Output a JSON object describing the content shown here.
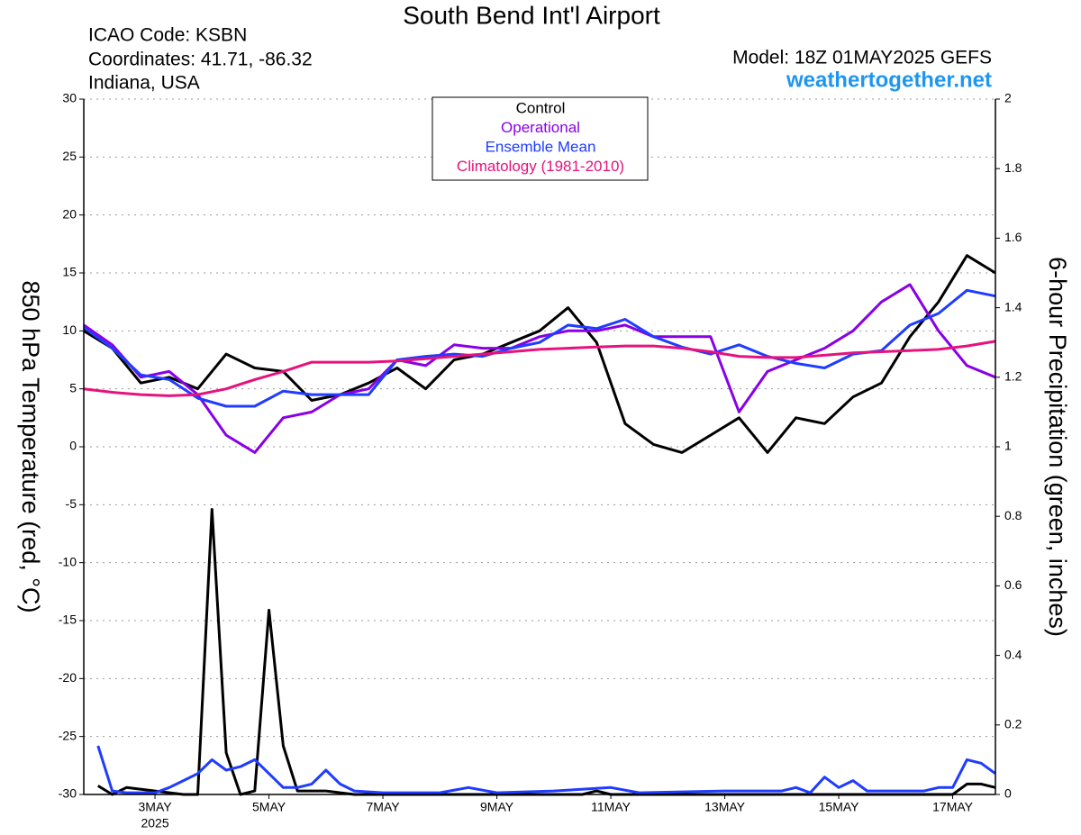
{
  "chart_data": {
    "type": "line",
    "title": "South Bend Int'l Airport",
    "info_lines": [
      "ICAO Code: KSBN",
      "Coordinates: 41.71, -86.32",
      "Indiana, USA"
    ],
    "model": "Model: 18Z 01MAY2025 GEFS",
    "website": "weathertogether.net",
    "ylabel": "850 hPa Temperature (red, °C)",
    "y2label": "6-hour Precipitation (green, inches)",
    "x_year_label": "2025",
    "xlim": [
      1.75,
      17.75
    ],
    "xticks": [
      {
        "value": 3,
        "label": "3MAY"
      },
      {
        "value": 5,
        "label": "5MAY"
      },
      {
        "value": 7,
        "label": "7MAY"
      },
      {
        "value": 9,
        "label": "9MAY"
      },
      {
        "value": 11,
        "label": "11MAY"
      },
      {
        "value": 13,
        "label": "13MAY"
      },
      {
        "value": 15,
        "label": "15MAY"
      },
      {
        "value": 17,
        "label": "17MAY"
      }
    ],
    "ylim": [
      -30,
      30
    ],
    "yticks": [
      -30,
      -25,
      -20,
      -15,
      -10,
      -5,
      0,
      5,
      10,
      15,
      20,
      25,
      30
    ],
    "y2lim": [
      0,
      2
    ],
    "y2ticks": [
      0,
      0.2,
      0.4,
      0.6,
      0.8,
      1,
      1.2,
      1.4,
      1.6,
      1.8,
      2
    ],
    "grid": true,
    "x": [
      1.75,
      2.25,
      2.75,
      3.25,
      3.75,
      4.25,
      4.75,
      5.25,
      5.75,
      6.25,
      6.75,
      7.25,
      7.75,
      8.25,
      8.75,
      9.25,
      9.75,
      10.25,
      10.75,
      11.25,
      11.75,
      12.25,
      12.75,
      13.25,
      13.75,
      14.25,
      14.75,
      15.25,
      15.75,
      16.25,
      16.75,
      17.25,
      17.75
    ],
    "series": [
      {
        "name": "Control",
        "color": "#000000",
        "values": [
          10,
          8.5,
          5.5,
          6,
          5,
          8,
          6.8,
          6.5,
          4,
          4.5,
          5.5,
          6.8,
          5,
          7.5,
          8,
          9,
          10,
          12,
          9,
          2,
          0.2,
          -0.5,
          1,
          2.5,
          -0.5,
          2.5,
          2,
          4.3,
          5.5,
          9.5,
          12.5,
          16.5,
          15
        ]
      },
      {
        "name": "Operational",
        "color": "#8a00e6",
        "values": [
          10.5,
          8.8,
          6,
          6.5,
          4.5,
          1,
          -0.5,
          2.5,
          3,
          4.5,
          5,
          7.5,
          7,
          8.8,
          8.5,
          8.5,
          9.5,
          10,
          10,
          10.5,
          9.5,
          9.5,
          9.5,
          3,
          6.5,
          7.5,
          8.5,
          10,
          12.5,
          14,
          10,
          7,
          6
        ]
      },
      {
        "name": "Ensemble Mean",
        "color": "#1f3cff",
        "values": [
          10.3,
          8.5,
          6.2,
          5.8,
          4.2,
          3.5,
          3.5,
          4.8,
          4.5,
          4.5,
          4.5,
          7.5,
          7.8,
          8,
          7.8,
          8.5,
          9,
          10.5,
          10.2,
          11,
          9.5,
          8.6,
          8,
          8.8,
          7.8,
          7.2,
          6.8,
          8,
          8.3,
          10.5,
          11.5,
          13.5,
          13
        ]
      },
      {
        "name": "Climatology (1981-2010)",
        "color": "#e6127d",
        "values": [
          5,
          4.7,
          4.5,
          4.4,
          4.5,
          5,
          5.8,
          6.5,
          7.3,
          7.3,
          7.3,
          7.4,
          7.6,
          7.8,
          8,
          8.2,
          8.4,
          8.5,
          8.6,
          8.7,
          8.7,
          8.5,
          8.2,
          7.8,
          7.7,
          7.7,
          7.9,
          8.1,
          8.2,
          8.3,
          8.4,
          8.7,
          9.1
        ]
      },
      {
        "axis": "y2",
        "color": "#000000",
        "x": [
          2,
          2.25,
          2.5,
          3.5,
          3.75,
          4,
          4.25,
          4.5,
          4.75,
          5,
          5.25,
          5.5,
          6,
          6.5,
          7,
          10.5,
          10.75,
          11,
          17,
          17.25,
          17.5,
          17.75
        ],
        "values": [
          0.025,
          0,
          0.02,
          0,
          0,
          0.82,
          0.12,
          0,
          0.01,
          0.53,
          0.14,
          0.01,
          0.01,
          0,
          0,
          0,
          0.01,
          0,
          0,
          0.03,
          0.03,
          0.02
        ]
      },
      {
        "axis": "y2",
        "color": "#1f3cff",
        "x": [
          2,
          2.25,
          2.5,
          3,
          3.25,
          3.5,
          3.75,
          4,
          4.25,
          4.5,
          4.75,
          5,
          5.25,
          5.5,
          5.75,
          6,
          6.25,
          6.5,
          7,
          8,
          8.5,
          9,
          10,
          11,
          11.5,
          13,
          14,
          14.25,
          14.5,
          14.75,
          15,
          15.25,
          15.5,
          16.5,
          16.75,
          17,
          17.25,
          17.5,
          17.75
        ],
        "values": [
          0.14,
          0.01,
          0.005,
          0.005,
          0.02,
          0.04,
          0.06,
          0.1,
          0.07,
          0.08,
          0.1,
          0.06,
          0.02,
          0.02,
          0.03,
          0.07,
          0.03,
          0.01,
          0.005,
          0.005,
          0.02,
          0.005,
          0.01,
          0.02,
          0.005,
          0.01,
          0.01,
          0.02,
          0.005,
          0.05,
          0.02,
          0.04,
          0.01,
          0.01,
          0.02,
          0.02,
          0.1,
          0.09,
          0.06
        ]
      }
    ]
  }
}
